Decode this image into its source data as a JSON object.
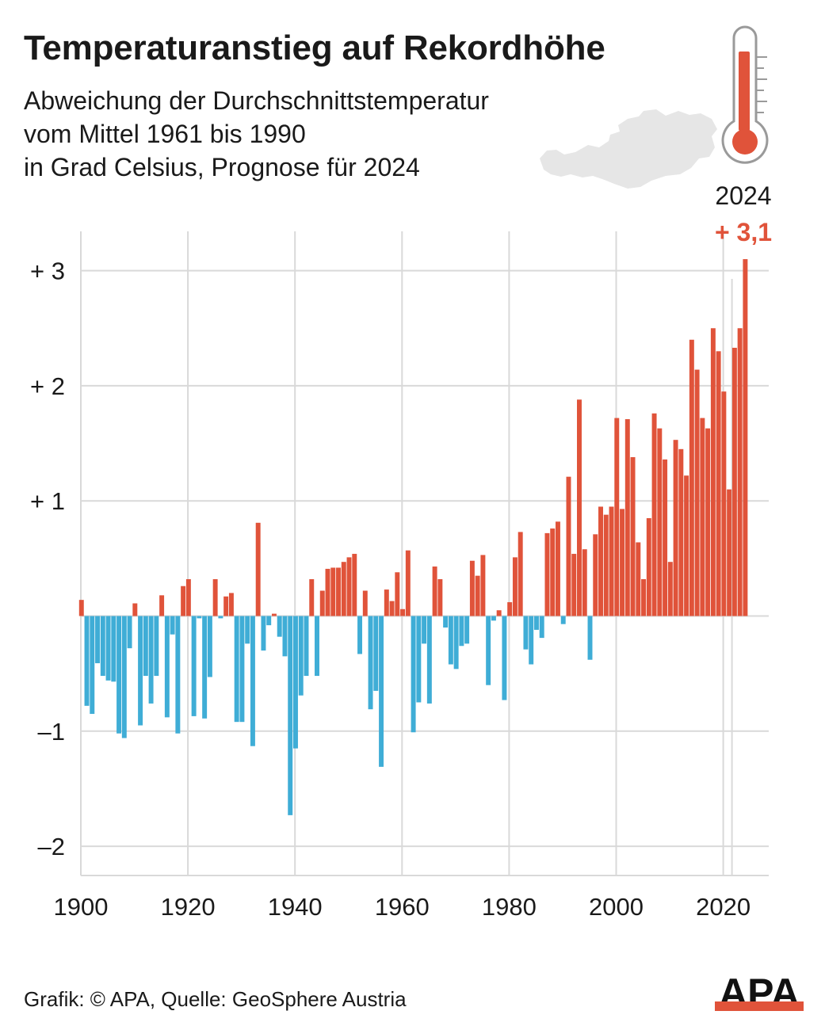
{
  "title": "Temperaturanstieg auf Rekordhöhe",
  "subtitle_lines": [
    "Abweichung der Durchschnittstemperatur",
    "vom Mittel 1961 bis 1990",
    "in Grad Celsius, Prognose für 2024"
  ],
  "source": "Grafik: © APA, Quelle: GeoSphere Austria",
  "logo_text": "APA",
  "colors": {
    "positive": "#e0533a",
    "negative": "#3fadd6",
    "grid": "#d9d9d9",
    "text": "#1a1a1a",
    "highlight": "#e0533a",
    "map": "#e6e6e6"
  },
  "icons": [
    "thermometer-icon",
    "austria-map-icon",
    "apa-logo-icon"
  ],
  "chart_data": {
    "type": "bar",
    "title": "Temperaturanstieg auf Rekordhöhe",
    "subtitle": "Abweichung der Durchschnittstemperatur vom Mittel 1961 bis 1990 in Grad Celsius, Prognose für 2024",
    "xlabel": "",
    "ylabel": "",
    "xlim": [
      1900,
      2028
    ],
    "ylim": [
      -2.25,
      3.3
    ],
    "x_ticks": [
      {
        "value": 1900,
        "label": "1900"
      },
      {
        "value": 1920,
        "label": "1920"
      },
      {
        "value": 1940,
        "label": "1940"
      },
      {
        "value": 1960,
        "label": "1960"
      },
      {
        "value": 1980,
        "label": "1980"
      },
      {
        "value": 2000,
        "label": "2000"
      },
      {
        "value": 2020,
        "label": "2020"
      }
    ],
    "y_ticks": [
      {
        "value": 3,
        "label": "+ 3"
      },
      {
        "value": 2,
        "label": "+ 2"
      },
      {
        "value": 1,
        "label": "+ 1"
      },
      {
        "value": -1,
        "label": "–1"
      },
      {
        "value": -2,
        "label": "–2"
      }
    ],
    "grid": true,
    "annotation": {
      "year": 2024,
      "year_label": "2024",
      "value_label": "+ 3,1"
    },
    "start_year": 1900,
    "years": [
      1900,
      1901,
      1902,
      1903,
      1904,
      1905,
      1906,
      1907,
      1908,
      1909,
      1910,
      1911,
      1912,
      1913,
      1914,
      1915,
      1916,
      1917,
      1918,
      1919,
      1920,
      1921,
      1922,
      1923,
      1924,
      1925,
      1926,
      1927,
      1928,
      1929,
      1930,
      1931,
      1932,
      1933,
      1934,
      1935,
      1936,
      1937,
      1938,
      1939,
      1940,
      1941,
      1942,
      1943,
      1944,
      1945,
      1946,
      1947,
      1948,
      1949,
      1950,
      1951,
      1952,
      1953,
      1954,
      1955,
      1956,
      1957,
      1958,
      1959,
      1960,
      1961,
      1962,
      1963,
      1964,
      1965,
      1966,
      1967,
      1968,
      1969,
      1970,
      1971,
      1972,
      1973,
      1974,
      1975,
      1976,
      1977,
      1978,
      1979,
      1980,
      1981,
      1982,
      1983,
      1984,
      1985,
      1986,
      1987,
      1988,
      1989,
      1990,
      1991,
      1992,
      1993,
      1994,
      1995,
      1996,
      1997,
      1998,
      1999,
      2000,
      2001,
      2002,
      2003,
      2004,
      2005,
      2006,
      2007,
      2008,
      2009,
      2010,
      2011,
      2012,
      2013,
      2014,
      2015,
      2016,
      2017,
      2018,
      2019,
      2020,
      2021,
      2022,
      2023,
      2024
    ],
    "values": [
      0.14,
      -0.78,
      -0.85,
      -0.41,
      -0.52,
      -0.56,
      -0.57,
      -1.02,
      -1.06,
      -0.28,
      0.11,
      -0.95,
      -0.52,
      -0.76,
      -0.52,
      0.18,
      -0.88,
      -0.16,
      -1.02,
      0.26,
      0.32,
      -0.87,
      -0.02,
      -0.89,
      -0.53,
      0.32,
      -0.02,
      0.17,
      0.2,
      -0.92,
      -0.92,
      -0.24,
      -1.13,
      0.81,
      -0.3,
      -0.08,
      0.02,
      -0.18,
      -0.35,
      -1.73,
      -1.15,
      -0.69,
      -0.52,
      0.32,
      -0.52,
      0.22,
      0.41,
      0.42,
      0.42,
      0.47,
      0.51,
      0.54,
      -0.33,
      0.22,
      -0.81,
      -0.65,
      -1.31,
      0.23,
      0.13,
      0.38,
      0.06,
      0.57,
      -1.01,
      -0.75,
      -0.24,
      -0.76,
      0.43,
      0.32,
      -0.1,
      -0.42,
      -0.46,
      -0.26,
      -0.24,
      0.48,
      0.35,
      0.53,
      -0.6,
      -0.04,
      0.05,
      -0.73,
      0.12,
      0.51,
      0.73,
      -0.29,
      -0.42,
      -0.12,
      -0.19,
      0.72,
      0.76,
      0.82,
      -0.07,
      1.21,
      0.54,
      1.88,
      0.58,
      -0.38,
      0.71,
      0.95,
      0.88,
      0.95,
      1.72,
      0.93,
      1.71,
      1.38,
      0.64,
      0.32,
      0.85,
      1.76,
      1.63,
      1.36,
      0.47,
      1.53,
      1.45,
      1.22,
      2.4,
      2.14,
      1.72,
      1.63,
      2.5,
      2.3,
      1.95,
      1.1,
      2.33,
      2.5,
      3.1
    ]
  }
}
